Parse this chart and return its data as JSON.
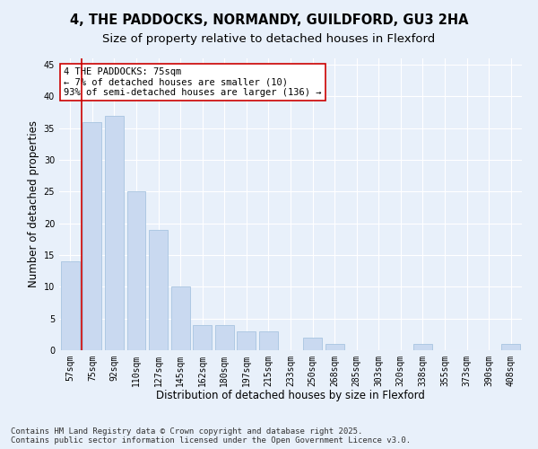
{
  "title1": "4, THE PADDOCKS, NORMANDY, GUILDFORD, GU3 2HA",
  "title2": "Size of property relative to detached houses in Flexford",
  "xlabel": "Distribution of detached houses by size in Flexford",
  "ylabel": "Number of detached properties",
  "categories": [
    "57sqm",
    "75sqm",
    "92sqm",
    "110sqm",
    "127sqm",
    "145sqm",
    "162sqm",
    "180sqm",
    "197sqm",
    "215sqm",
    "233sqm",
    "250sqm",
    "268sqm",
    "285sqm",
    "303sqm",
    "320sqm",
    "338sqm",
    "355sqm",
    "373sqm",
    "390sqm",
    "408sqm"
  ],
  "values": [
    14,
    36,
    37,
    25,
    19,
    10,
    4,
    4,
    3,
    3,
    0,
    2,
    1,
    0,
    0,
    0,
    1,
    0,
    0,
    0,
    1
  ],
  "bar_color": "#c9d9f0",
  "bar_edge_color": "#a8c4e0",
  "vline_x": 0.5,
  "vline_color": "#cc0000",
  "annotation_text": "4 THE PADDOCKS: 75sqm\n← 7% of detached houses are smaller (10)\n93% of semi-detached houses are larger (136) →",
  "annotation_box_color": "#ffffff",
  "annotation_box_edge": "#cc0000",
  "ylim": [
    0,
    46
  ],
  "yticks": [
    0,
    5,
    10,
    15,
    20,
    25,
    30,
    35,
    40,
    45
  ],
  "footer": "Contains HM Land Registry data © Crown copyright and database right 2025.\nContains public sector information licensed under the Open Government Licence v3.0.",
  "bg_color": "#e8f0fa",
  "plot_bg_color": "#e8f0fa",
  "grid_color": "#ffffff",
  "title_fontsize": 10.5,
  "subtitle_fontsize": 9.5,
  "axis_label_fontsize": 8.5,
  "tick_fontsize": 7,
  "annotation_fontsize": 7.5,
  "footer_fontsize": 6.5
}
